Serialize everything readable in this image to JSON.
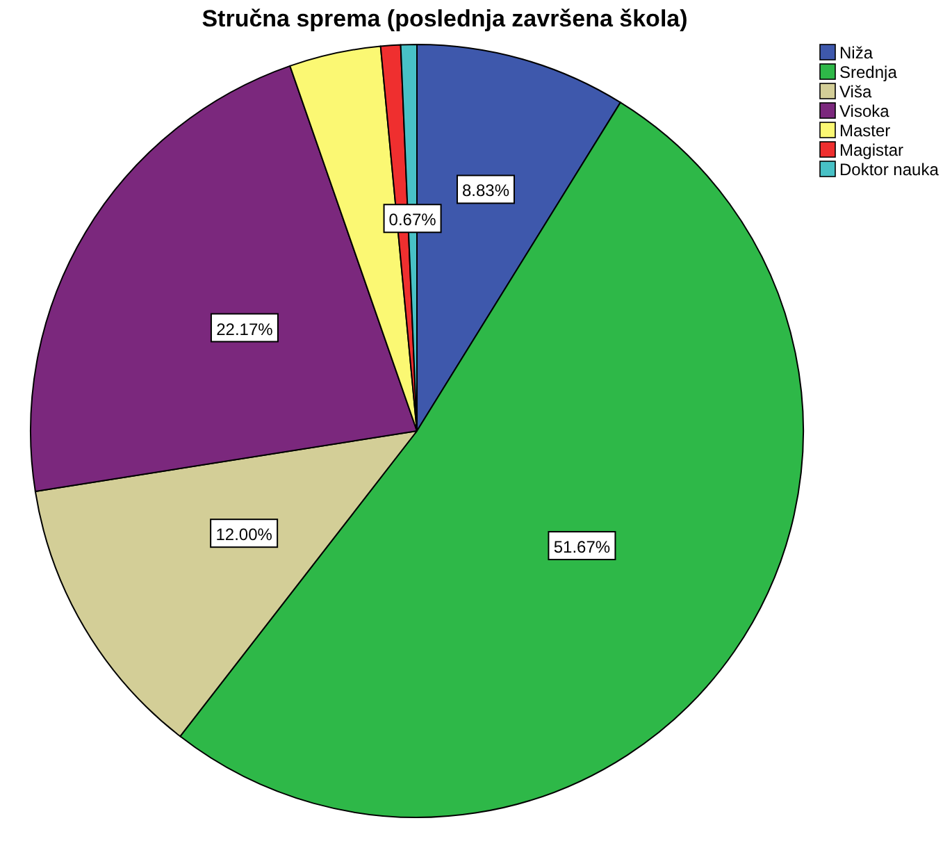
{
  "chart_data": {
    "type": "pie",
    "title": "Stručna sprema (poslednja završena škola)",
    "categories": [
      "Niža",
      "Srednja",
      "Viša",
      "Visoka",
      "Master",
      "Magistar",
      "Doktor nauka"
    ],
    "values": [
      8.83,
      51.67,
      12.0,
      22.17,
      3.83,
      0.83,
      0.67
    ],
    "value_labels": [
      "8.83%",
      "51.67%",
      "12.00%",
      "22.17%",
      null,
      null,
      "0.67%"
    ],
    "colors": [
      "#3e58ac",
      "#2eb848",
      "#d3ce97",
      "#7b287d",
      "#fbf873",
      "#ef2f2f",
      "#48c1c6"
    ],
    "legend": "top right"
  }
}
